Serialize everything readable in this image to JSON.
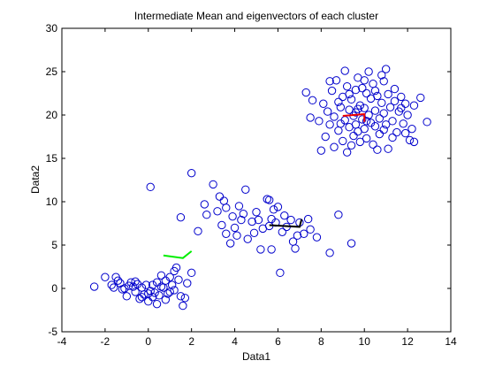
{
  "chart_data": {
    "type": "scatter",
    "title": "Intermediate Mean and eigenvectors of each cluster",
    "xlabel": "Data1",
    "ylabel": "Data2",
    "xlim": [
      -4,
      14
    ],
    "ylim": [
      -5,
      30
    ],
    "xticks": [
      -4,
      -2,
      0,
      2,
      4,
      6,
      8,
      10,
      12,
      14
    ],
    "yticks": [
      -5,
      0,
      5,
      10,
      15,
      20,
      25,
      30
    ],
    "grid": false,
    "legend": "none",
    "marker_color": "#0000cc",
    "series": [
      {
        "marker": "circle",
        "color": "#0000cc",
        "points": [
          [
            -2.5,
            0.2
          ],
          [
            -2.0,
            1.3
          ],
          [
            -1.7,
            0.4
          ],
          [
            -1.6,
            0.1
          ],
          [
            -1.5,
            1.3
          ],
          [
            -1.4,
            0.9
          ],
          [
            -1.3,
            0.6
          ],
          [
            -1.2,
            -0.1
          ],
          [
            -1.0,
            -0.9
          ],
          [
            -0.9,
            0.3
          ],
          [
            -0.8,
            0.7
          ],
          [
            -0.7,
            0.2
          ],
          [
            -0.6,
            -0.4
          ],
          [
            -0.5,
            0.5
          ],
          [
            -0.4,
            -1.2
          ],
          [
            -0.3,
            0.1
          ],
          [
            -0.2,
            -0.7
          ],
          [
            -0.1,
            0.4
          ],
          [
            0.0,
            -1.5
          ],
          [
            0.1,
            -0.3
          ],
          [
            0.2,
            -1.0
          ],
          [
            0.3,
            -0.5
          ],
          [
            0.4,
            0.7
          ],
          [
            0.5,
            -0.8
          ],
          [
            0.6,
            1.5
          ],
          [
            0.7,
            0.1
          ],
          [
            0.8,
            0.9
          ],
          [
            0.9,
            -0.6
          ],
          [
            1.0,
            1.3
          ],
          [
            1.1,
            0.4
          ],
          [
            1.2,
            -0.2
          ],
          [
            1.3,
            2.4
          ],
          [
            1.4,
            1.0
          ],
          [
            1.5,
            -0.9
          ],
          [
            1.6,
            -2.0
          ],
          [
            1.7,
            -1.1
          ],
          [
            1.8,
            0.6
          ],
          [
            2.0,
            1.8
          ],
          [
            -0.6,
            0.8
          ],
          [
            0.2,
            0.4
          ],
          [
            0.0,
            -0.6
          ],
          [
            0.8,
            -1.3
          ],
          [
            0.4,
            -1.8
          ],
          [
            1.2,
            2.0
          ],
          [
            -1.1,
            0.0
          ],
          [
            0.6,
            0.2
          ],
          [
            1.0,
            -0.4
          ],
          [
            -0.3,
            -1.0
          ],
          [
            0.1,
            11.7
          ],
          [
            1.5,
            8.2
          ],
          [
            2.0,
            13.3
          ],
          [
            2.3,
            6.6
          ],
          [
            2.7,
            8.5
          ],
          [
            3.0,
            12.0
          ],
          [
            3.3,
            10.6
          ],
          [
            3.4,
            7.3
          ],
          [
            3.5,
            10.1
          ],
          [
            3.6,
            9.3
          ],
          [
            3.6,
            6.3
          ],
          [
            3.8,
            5.2
          ],
          [
            3.9,
            8.3
          ],
          [
            4.0,
            7.0
          ],
          [
            4.1,
            6.1
          ],
          [
            4.2,
            9.5
          ],
          [
            4.3,
            7.9
          ],
          [
            4.4,
            8.6
          ],
          [
            4.5,
            11.4
          ],
          [
            4.6,
            5.7
          ],
          [
            4.8,
            7.7
          ],
          [
            5.0,
            8.8
          ],
          [
            5.2,
            4.5
          ],
          [
            5.3,
            6.9
          ],
          [
            5.5,
            10.3
          ],
          [
            5.6,
            7.2
          ],
          [
            5.7,
            8.0
          ],
          [
            5.7,
            4.5
          ],
          [
            5.8,
            9.1
          ],
          [
            5.9,
            7.6
          ],
          [
            6.1,
            1.8
          ],
          [
            6.2,
            6.5
          ],
          [
            6.3,
            8.4
          ],
          [
            6.4,
            7.1
          ],
          [
            6.6,
            7.9
          ],
          [
            6.7,
            5.4
          ],
          [
            6.8,
            4.6
          ],
          [
            6.9,
            6.1
          ],
          [
            7.0,
            7.6
          ],
          [
            7.2,
            6.3
          ],
          [
            7.4,
            8.0
          ],
          [
            7.5,
            6.8
          ],
          [
            5.6,
            10.2
          ],
          [
            3.2,
            8.9
          ],
          [
            4.9,
            6.4
          ],
          [
            2.6,
            9.7
          ],
          [
            5.1,
            7.9
          ],
          [
            6.0,
            9.4
          ],
          [
            8.4,
            4.1
          ],
          [
            8.8,
            8.5
          ],
          [
            9.4,
            5.2
          ],
          [
            7.8,
            5.9
          ],
          [
            7.3,
            22.6
          ],
          [
            7.5,
            19.7
          ],
          [
            7.9,
            19.3
          ],
          [
            8.1,
            21.3
          ],
          [
            8.2,
            17.5
          ],
          [
            8.3,
            20.4
          ],
          [
            8.4,
            18.9
          ],
          [
            8.5,
            22.8
          ],
          [
            8.6,
            16.3
          ],
          [
            8.6,
            19.8
          ],
          [
            8.7,
            24.0
          ],
          [
            8.8,
            21.5
          ],
          [
            8.8,
            18.2
          ],
          [
            8.9,
            20.9
          ],
          [
            9.0,
            22.1
          ],
          [
            9.0,
            17.0
          ],
          [
            9.1,
            19.4
          ],
          [
            9.2,
            23.3
          ],
          [
            9.2,
            15.7
          ],
          [
            9.3,
            20.6
          ],
          [
            9.3,
            18.6
          ],
          [
            9.4,
            21.8
          ],
          [
            9.5,
            19.9
          ],
          [
            9.5,
            17.6
          ],
          [
            9.6,
            22.9
          ],
          [
            9.6,
            20.3
          ],
          [
            9.7,
            18.1
          ],
          [
            9.7,
            24.3
          ],
          [
            9.8,
            21.1
          ],
          [
            9.8,
            16.9
          ],
          [
            9.9,
            19.5
          ],
          [
            9.9,
            23.1
          ],
          [
            10.0,
            20.8
          ],
          [
            10.0,
            18.4
          ],
          [
            10.1,
            22.5
          ],
          [
            10.1,
            17.3
          ],
          [
            10.2,
            25.0
          ],
          [
            10.2,
            20.0
          ],
          [
            10.3,
            21.9
          ],
          [
            10.3,
            19.1
          ],
          [
            10.4,
            16.6
          ],
          [
            10.4,
            23.6
          ],
          [
            10.5,
            20.5
          ],
          [
            10.5,
            18.7
          ],
          [
            10.6,
            22.2
          ],
          [
            10.7,
            19.6
          ],
          [
            10.7,
            17.8
          ],
          [
            10.8,
            21.4
          ],
          [
            10.9,
            23.9
          ],
          [
            10.9,
            20.2
          ],
          [
            11.0,
            18.9
          ],
          [
            11.1,
            22.4
          ],
          [
            11.1,
            16.1
          ],
          [
            11.2,
            20.9
          ],
          [
            11.3,
            19.3
          ],
          [
            11.4,
            21.6
          ],
          [
            11.4,
            23.0
          ],
          [
            11.5,
            18.0
          ],
          [
            11.6,
            20.4
          ],
          [
            11.7,
            22.1
          ],
          [
            11.8,
            19.0
          ],
          [
            11.9,
            21.3
          ],
          [
            12.0,
            20.0
          ],
          [
            12.1,
            17.1
          ],
          [
            12.2,
            18.4
          ],
          [
            12.3,
            16.9
          ],
          [
            12.3,
            21.1
          ],
          [
            12.9,
            19.2
          ],
          [
            11.0,
            25.3
          ],
          [
            8.0,
            15.9
          ],
          [
            9.4,
            16.5
          ],
          [
            10.6,
            16.0
          ],
          [
            8.4,
            23.9
          ],
          [
            10.8,
            24.6
          ],
          [
            11.9,
            17.9
          ],
          [
            7.6,
            21.7
          ],
          [
            9.1,
            25.1
          ],
          [
            12.6,
            22.0
          ],
          [
            10.1,
            19.3
          ],
          [
            9.7,
            20.7
          ],
          [
            10.5,
            22.8
          ],
          [
            11.3,
            17.4
          ],
          [
            8.9,
            19.0
          ],
          [
            10.0,
            24.0
          ],
          [
            9.3,
            22.4
          ],
          [
            10.9,
            18.3
          ],
          [
            11.7,
            20.8
          ],
          [
            9.6,
            18.9
          ]
        ]
      }
    ],
    "eigenvector_lines": [
      {
        "color": "#00ee00",
        "points": [
          [
            0.7,
            3.8
          ],
          [
            1.6,
            3.5
          ],
          [
            2.0,
            4.3
          ]
        ]
      },
      {
        "color": "#000000",
        "points": [
          [
            5.6,
            7.3
          ],
          [
            7.0,
            7.1
          ],
          [
            7.1,
            8.0
          ]
        ]
      },
      {
        "color": "#ee0000",
        "points": [
          [
            9.0,
            19.9
          ],
          [
            10.0,
            20.1
          ],
          [
            10.0,
            19.2
          ]
        ]
      }
    ]
  }
}
